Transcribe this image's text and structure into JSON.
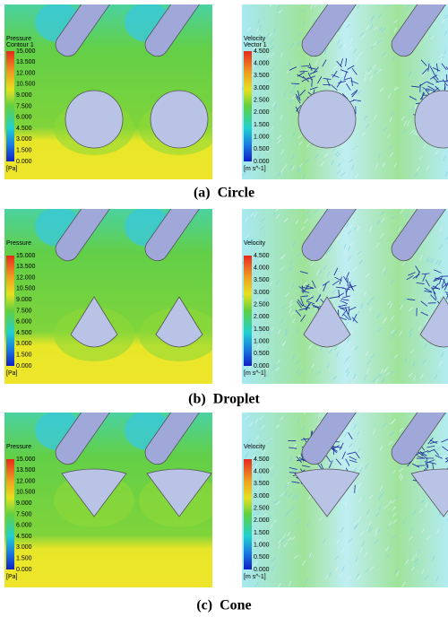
{
  "panels": [
    {
      "caption": "(a)  Circle",
      "pressure": {
        "title": [
          "Pressure",
          "Contour 1"
        ],
        "ticks": [
          "15.000",
          "13.500",
          "12.000",
          "10.500",
          "9.000",
          "7.500",
          "6.000",
          "4.500",
          "3.000",
          "1.500",
          "0.000"
        ],
        "unit": "[Pa]"
      },
      "velocity": {
        "title": [
          "Velocity",
          "Vector 1"
        ],
        "ticks": [
          "4.500",
          "4.000",
          "3.500",
          "3.000",
          "2.500",
          "2.000",
          "1.500",
          "1.000",
          "0.500",
          "0.000"
        ],
        "unit": "[m s^-1]"
      }
    },
    {
      "caption": "(b)  Droplet",
      "pressure": {
        "title": [
          "Pressure"
        ],
        "ticks": [
          "15.000",
          "13.500",
          "12.000",
          "10.500",
          "9.000",
          "7.500",
          "6.000",
          "4.500",
          "3.000",
          "1.500",
          "0.000"
        ],
        "unit": "[Pa]"
      },
      "velocity": {
        "title": [
          "Velocity"
        ],
        "ticks": [
          "4.500",
          "4.000",
          "3.500",
          "3.000",
          "2.500",
          "2.000",
          "1.500",
          "1.000",
          "0.500",
          "0.000"
        ],
        "unit": "[m s^-1]"
      }
    },
    {
      "caption": "(c)  Cone",
      "pressure": {
        "title": [
          "Pressure"
        ],
        "ticks": [
          "15.000",
          "13.500",
          "12.000",
          "10.500",
          "9.000",
          "7.500",
          "6.000",
          "4.500",
          "3.000",
          "1.500",
          "0.000"
        ],
        "unit": "[Pa]"
      },
      "velocity": {
        "title": [
          "Velocity"
        ],
        "ticks": [
          "4.500",
          "4.000",
          "3.500",
          "3.000",
          "2.500",
          "2.000",
          "1.500",
          "1.000",
          "0.500",
          "0.000"
        ],
        "unit": "[m s^-1]"
      }
    }
  ]
}
